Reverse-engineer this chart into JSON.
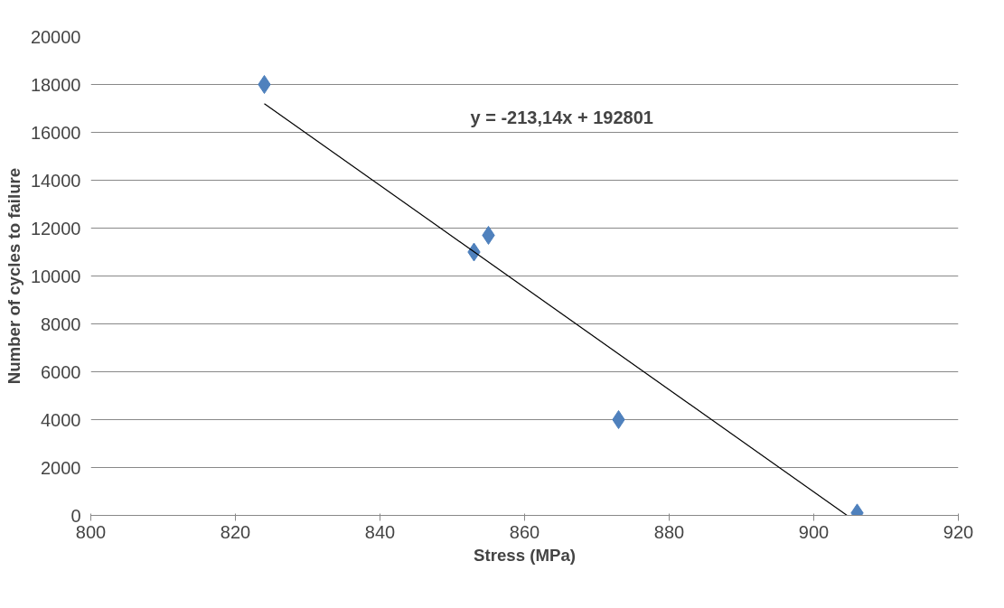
{
  "chart_data": {
    "type": "scatter",
    "xlabel": "Stress (MPa)",
    "ylabel": "Number of cycles to failure",
    "xlim": [
      800,
      920
    ],
    "xticks": [
      800,
      820,
      840,
      860,
      880,
      900,
      920
    ],
    "ylim": [
      0,
      20000
    ],
    "yticks": [
      0,
      2000,
      4000,
      6000,
      8000,
      10000,
      12000,
      14000,
      16000,
      18000,
      20000
    ],
    "grid": "y",
    "series": [
      {
        "color": "#4f81bd",
        "marker": "diamond",
        "x": [
          824,
          853,
          855,
          873,
          906
        ],
        "values": [
          18000,
          11000,
          11700,
          4000,
          100
        ]
      },
      {
        "type": "line",
        "color": "#000000",
        "x": [
          824,
          904.6
        ],
        "values": [
          17200,
          0
        ],
        "line_style": "solid"
      }
    ],
    "annotations": [
      "y = -213,14x + 192801"
    ]
  }
}
